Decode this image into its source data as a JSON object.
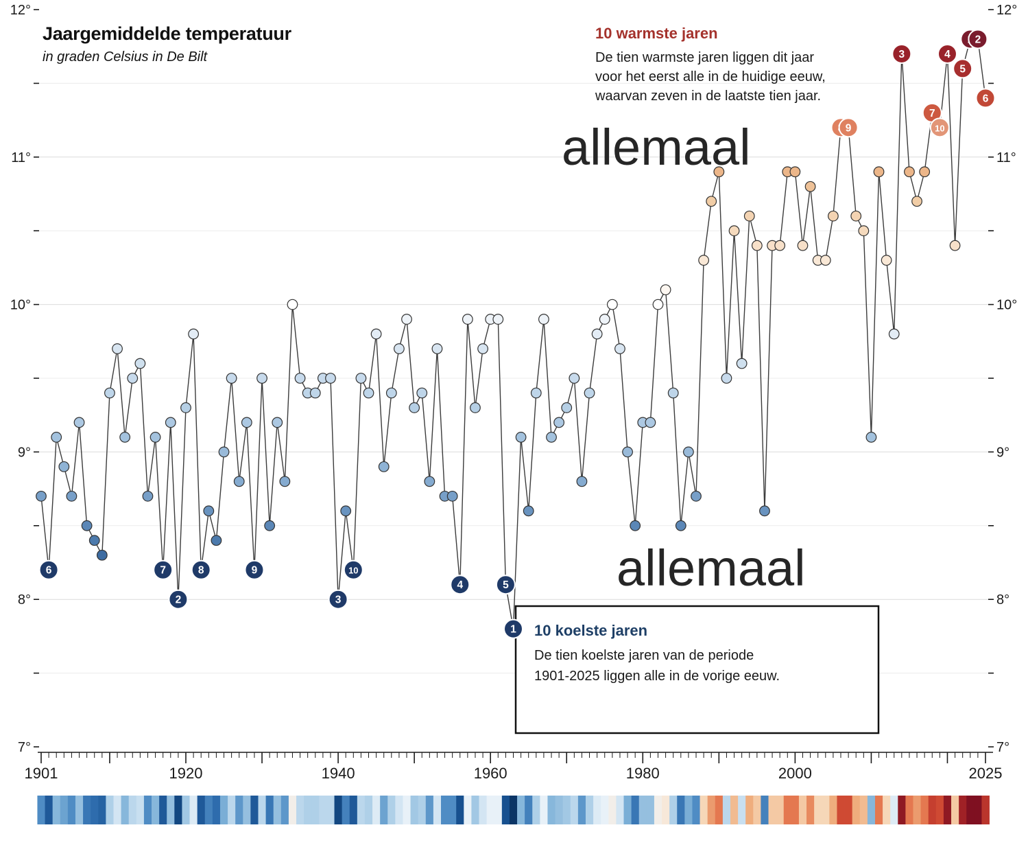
{
  "header": {
    "title": "Jaargemiddelde temperatuur",
    "subtitle": "in graden Celsius in De Bilt"
  },
  "watermarks": {
    "top": "allemaal",
    "bottom": "allemaal"
  },
  "annotations": {
    "warm": {
      "heading": "10 warmste jaren",
      "text": "De tien warmste jaren liggen dit jaar\nvoor het eerst alle in de huidige eeuw,\nwaarvan zeven in de laatste tien jaar.",
      "heading_color": "#a4322c"
    },
    "cool": {
      "heading": "10 koelste jaren",
      "text": "De tien koelste jaren van de periode\n1901-2025 liggen alle in de vorige eeuw.",
      "heading_color": "#1e3f66"
    }
  },
  "chart_data": {
    "type": "line",
    "title": "Jaargemiddelde temperatuur",
    "ylabel": "graden Celsius",
    "unit": "°C",
    "start_year": 1901,
    "end_year": 2025,
    "ylim": [
      7,
      12
    ],
    "grid": true,
    "legend_position": "none",
    "y_major_ticks": [
      {
        "value": 12,
        "label": "12°"
      },
      {
        "value": 11,
        "label": "11°"
      },
      {
        "value": 10,
        "label": "10°"
      },
      {
        "value": 9,
        "label": "9°"
      },
      {
        "value": 8,
        "label": "8°"
      },
      {
        "value": 7,
        "label": "7°"
      }
    ],
    "y_minor_step": 0.5,
    "x_ticks": [
      {
        "value": 1901,
        "label": "1901"
      },
      {
        "value": 1920,
        "label": "1920"
      },
      {
        "value": 1940,
        "label": "1940"
      },
      {
        "value": 1960,
        "label": "1960"
      },
      {
        "value": 1980,
        "label": "1980"
      },
      {
        "value": 2000,
        "label": "2000"
      },
      {
        "value": 2025,
        "label": "2025"
      }
    ],
    "values": [
      8.7,
      8.2,
      9.1,
      8.9,
      8.7,
      9.2,
      8.5,
      8.4,
      8.3,
      9.4,
      9.7,
      9.1,
      9.5,
      9.6,
      8.7,
      9.1,
      8.2,
      9.2,
      8.0,
      9.3,
      9.8,
      8.2,
      8.6,
      8.4,
      9.0,
      9.5,
      8.8,
      9.2,
      8.2,
      9.5,
      8.5,
      9.2,
      8.8,
      10.0,
      9.5,
      9.4,
      9.4,
      9.5,
      9.5,
      8.0,
      8.6,
      8.2,
      9.5,
      9.4,
      9.8,
      8.9,
      9.4,
      9.7,
      9.9,
      9.3,
      9.4,
      8.8,
      9.7,
      8.7,
      8.7,
      8.1,
      9.9,
      9.3,
      9.7,
      9.9,
      9.9,
      8.1,
      7.8,
      9.1,
      8.6,
      9.4,
      9.9,
      9.1,
      9.2,
      9.3,
      9.5,
      8.8,
      9.4,
      9.8,
      9.9,
      10.0,
      9.7,
      9.0,
      8.5,
      9.2,
      9.2,
      10.0,
      10.1,
      9.4,
      8.5,
      9.0,
      8.7,
      10.3,
      10.7,
      10.9,
      9.5,
      10.5,
      9.6,
      10.6,
      10.4,
      8.6,
      10.4,
      10.4,
      10.9,
      10.9,
      10.4,
      10.8,
      10.3,
      10.3,
      10.6,
      11.2,
      11.2,
      10.6,
      10.5,
      9.1,
      10.9,
      10.3,
      9.8,
      11.7,
      10.9,
      10.7,
      10.9,
      11.3,
      11.2,
      11.7,
      10.4,
      11.6,
      11.8,
      11.8,
      11.4
    ],
    "warm_ranks": [
      {
        "rank": 1,
        "year": 2023,
        "color": "#7a1c2d"
      },
      {
        "rank": 2,
        "year": 2024,
        "color": "#7a1c2d"
      },
      {
        "rank": 3,
        "year": 2014,
        "color": "#99222a"
      },
      {
        "rank": 4,
        "year": 2020,
        "color": "#99222a"
      },
      {
        "rank": 5,
        "year": 2022,
        "color": "#a72e2e"
      },
      {
        "rank": 6,
        "year": 2025,
        "color": "#c14836"
      },
      {
        "rank": 7,
        "year": 2018,
        "color": "#cd5940"
      },
      {
        "rank": 8,
        "year": 2006,
        "color": "#df8160"
      },
      {
        "rank": 9,
        "year": 2007,
        "color": "#df8160"
      },
      {
        "rank": 10,
        "year": 2019,
        "color": "#e29577"
      }
    ],
    "cool_ranks": [
      {
        "rank": 1,
        "year": 1963
      },
      {
        "rank": 2,
        "year": 1919
      },
      {
        "rank": 3,
        "year": 1940
      },
      {
        "rank": 4,
        "year": 1956
      },
      {
        "rank": 5,
        "year": 1962
      },
      {
        "rank": 6,
        "year": 1902
      },
      {
        "rank": 7,
        "year": 1917
      },
      {
        "rank": 8,
        "year": 1922
      },
      {
        "rank": 9,
        "year": 1929
      },
      {
        "rank": 10,
        "year": 1942
      }
    ]
  },
  "colors": {
    "background": "#ffffff",
    "line": "#3b3b3b",
    "dot_stroke": "#333333",
    "axis": "#1a1a1a",
    "grid_major": "#dcdcdc",
    "grid_minor": "#ececec",
    "cool_marker": "#1f3a68",
    "marker_text": "#ffffff",
    "box_border": "#111111",
    "dot_scale": [
      [
        7.8,
        "#1e3f6e"
      ],
      [
        8.2,
        "#2e5f97"
      ],
      [
        8.5,
        "#5b87b7"
      ],
      [
        8.8,
        "#85abd0"
      ],
      [
        9.1,
        "#a3c2de"
      ],
      [
        9.4,
        "#bed5e9"
      ],
      [
        9.7,
        "#d8e5f1"
      ],
      [
        9.9,
        "#eef3f8"
      ],
      [
        10.0,
        "#ffffff"
      ],
      [
        10.15,
        "#fcf3ea"
      ],
      [
        10.4,
        "#f7e0c9"
      ],
      [
        10.7,
        "#f1cda6"
      ],
      [
        10.9,
        "#ecb689"
      ],
      [
        11.2,
        "#e39a70"
      ]
    ],
    "stripe_scale": [
      [
        7.8,
        "#0b3566"
      ],
      [
        8.1,
        "#17508f"
      ],
      [
        8.4,
        "#2e6cad"
      ],
      [
        8.7,
        "#4f8cc4"
      ],
      [
        9.0,
        "#7aaed6"
      ],
      [
        9.3,
        "#a2c8e4"
      ],
      [
        9.6,
        "#c8dff0"
      ],
      [
        9.9,
        "#e8f1f8"
      ],
      [
        10.05,
        "#f7ece1"
      ],
      [
        10.3,
        "#f6d7b8"
      ],
      [
        10.6,
        "#efad7d"
      ],
      [
        10.9,
        "#e47850"
      ],
      [
        11.2,
        "#cf4a33"
      ],
      [
        11.5,
        "#b02a28"
      ],
      [
        11.8,
        "#7f1021"
      ]
    ]
  }
}
